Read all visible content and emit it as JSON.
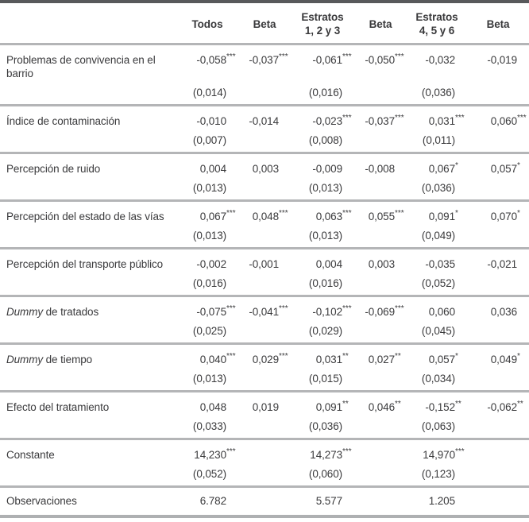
{
  "table": {
    "colors": {
      "rule_dark": "#58595b",
      "rule_light": "#b4b5b7",
      "text": "#3a3a3c"
    },
    "header": {
      "col0": "",
      "cols": [
        {
          "lines": [
            "Todos"
          ]
        },
        {
          "lines": [
            "Beta"
          ]
        },
        {
          "lines": [
            "Estratos",
            "1, 2 y 3"
          ]
        },
        {
          "lines": [
            "Beta"
          ]
        },
        {
          "lines": [
            "Estratos",
            "4, 5 y 6"
          ]
        },
        {
          "lines": [
            "Beta"
          ]
        }
      ]
    },
    "rows": [
      {
        "label_italic": "",
        "label": "Problemas de convivencia en el barrio",
        "coefs": [
          {
            "v": "-0,058",
            "s": "***"
          },
          {
            "v": "-0,037",
            "s": "***"
          },
          {
            "v": "-0,061",
            "s": "***"
          },
          {
            "v": "-0,050",
            "s": "***"
          },
          {
            "v": "-0,032",
            "s": ""
          },
          {
            "v": "-0,019",
            "s": ""
          }
        ],
        "se": [
          "(0,014)",
          "",
          "(0,016)",
          "",
          "(0,036)",
          ""
        ]
      },
      {
        "label_italic": "",
        "label": "Índice de contaminación",
        "coefs": [
          {
            "v": "-0,010",
            "s": ""
          },
          {
            "v": "-0,014",
            "s": ""
          },
          {
            "v": "-0,023",
            "s": "***"
          },
          {
            "v": "-0,037",
            "s": "***"
          },
          {
            "v": "0,031",
            "s": "***"
          },
          {
            "v": "0,060",
            "s": "***"
          }
        ],
        "se": [
          "(0,007)",
          "",
          "(0,008)",
          "",
          "(0,011)",
          ""
        ]
      },
      {
        "label_italic": "",
        "label": "Percepción de ruido",
        "coefs": [
          {
            "v": "0,004",
            "s": ""
          },
          {
            "v": "0,003",
            "s": ""
          },
          {
            "v": "-0,009",
            "s": ""
          },
          {
            "v": "-0,008",
            "s": ""
          },
          {
            "v": "0,067",
            "s": "*"
          },
          {
            "v": "0,057",
            "s": "*"
          }
        ],
        "se": [
          "(0,013)",
          "",
          "(0,013)",
          "",
          "(0,036)",
          ""
        ]
      },
      {
        "label_italic": "",
        "label": "Percepción del estado de las vías",
        "coefs": [
          {
            "v": "0,067",
            "s": "***"
          },
          {
            "v": "0,048",
            "s": "***"
          },
          {
            "v": "0,063",
            "s": "***"
          },
          {
            "v": "0,055",
            "s": "***"
          },
          {
            "v": "0,091",
            "s": "*"
          },
          {
            "v": "0,070",
            "s": "*"
          }
        ],
        "se": [
          "(0,013)",
          "",
          "(0,013)",
          "",
          "(0,049)",
          ""
        ]
      },
      {
        "label_italic": "",
        "label": "Percepción del transporte público",
        "coefs": [
          {
            "v": "-0,002",
            "s": ""
          },
          {
            "v": "-0,001",
            "s": ""
          },
          {
            "v": "0,004",
            "s": ""
          },
          {
            "v": "0,003",
            "s": ""
          },
          {
            "v": "-0,035",
            "s": ""
          },
          {
            "v": "-0,021",
            "s": ""
          }
        ],
        "se": [
          "(0,016)",
          "",
          "(0,016)",
          "",
          "(0,052)",
          ""
        ]
      },
      {
        "label_italic": "Dummy",
        "label": " de tratados",
        "coefs": [
          {
            "v": "-0,075",
            "s": "***"
          },
          {
            "v": "-0,041",
            "s": "***"
          },
          {
            "v": "-0,102",
            "s": "***"
          },
          {
            "v": "-0,069",
            "s": "***"
          },
          {
            "v": "0,060",
            "s": ""
          },
          {
            "v": "0,036",
            "s": ""
          }
        ],
        "se": [
          "(0,025)",
          "",
          "(0,029)",
          "",
          "(0,045)",
          ""
        ]
      },
      {
        "label_italic": "Dummy",
        "label": " de tiempo",
        "coefs": [
          {
            "v": "0,040",
            "s": "***"
          },
          {
            "v": "0,029",
            "s": "***"
          },
          {
            "v": "0,031",
            "s": "**"
          },
          {
            "v": "0,027",
            "s": "**"
          },
          {
            "v": "0,057",
            "s": "*"
          },
          {
            "v": "0,049",
            "s": "*"
          }
        ],
        "se": [
          "(0,013)",
          "",
          "(0,015)",
          "",
          "(0,034)",
          ""
        ]
      },
      {
        "label_italic": "",
        "label": "Efecto del tratamiento",
        "coefs": [
          {
            "v": "0,048",
            "s": ""
          },
          {
            "v": "0,019",
            "s": ""
          },
          {
            "v": "0,091",
            "s": "**"
          },
          {
            "v": "0,046",
            "s": "**"
          },
          {
            "v": "-0,152",
            "s": "**"
          },
          {
            "v": "-0,062",
            "s": "**"
          }
        ],
        "se": [
          "(0,033)",
          "",
          "(0,036)",
          "",
          "(0,063)",
          ""
        ]
      },
      {
        "label_italic": "",
        "label": "Constante",
        "coefs": [
          {
            "v": "14,230",
            "s": "***"
          },
          {
            "v": "",
            "s": ""
          },
          {
            "v": "14,273",
            "s": "***"
          },
          {
            "v": "",
            "s": ""
          },
          {
            "v": "14,970",
            "s": "***"
          },
          {
            "v": "",
            "s": ""
          }
        ],
        "se": [
          "(0,052)",
          "",
          "(0,060)",
          "",
          "(0,123)",
          ""
        ]
      },
      {
        "label_italic": "",
        "label": "Observaciones",
        "coefs": [
          {
            "v": "6.782",
            "s": ""
          },
          {
            "v": "",
            "s": ""
          },
          {
            "v": "5.577",
            "s": ""
          },
          {
            "v": "",
            "s": ""
          },
          {
            "v": "1.205",
            "s": ""
          },
          {
            "v": "",
            "s": ""
          }
        ],
        "se": null
      }
    ]
  }
}
